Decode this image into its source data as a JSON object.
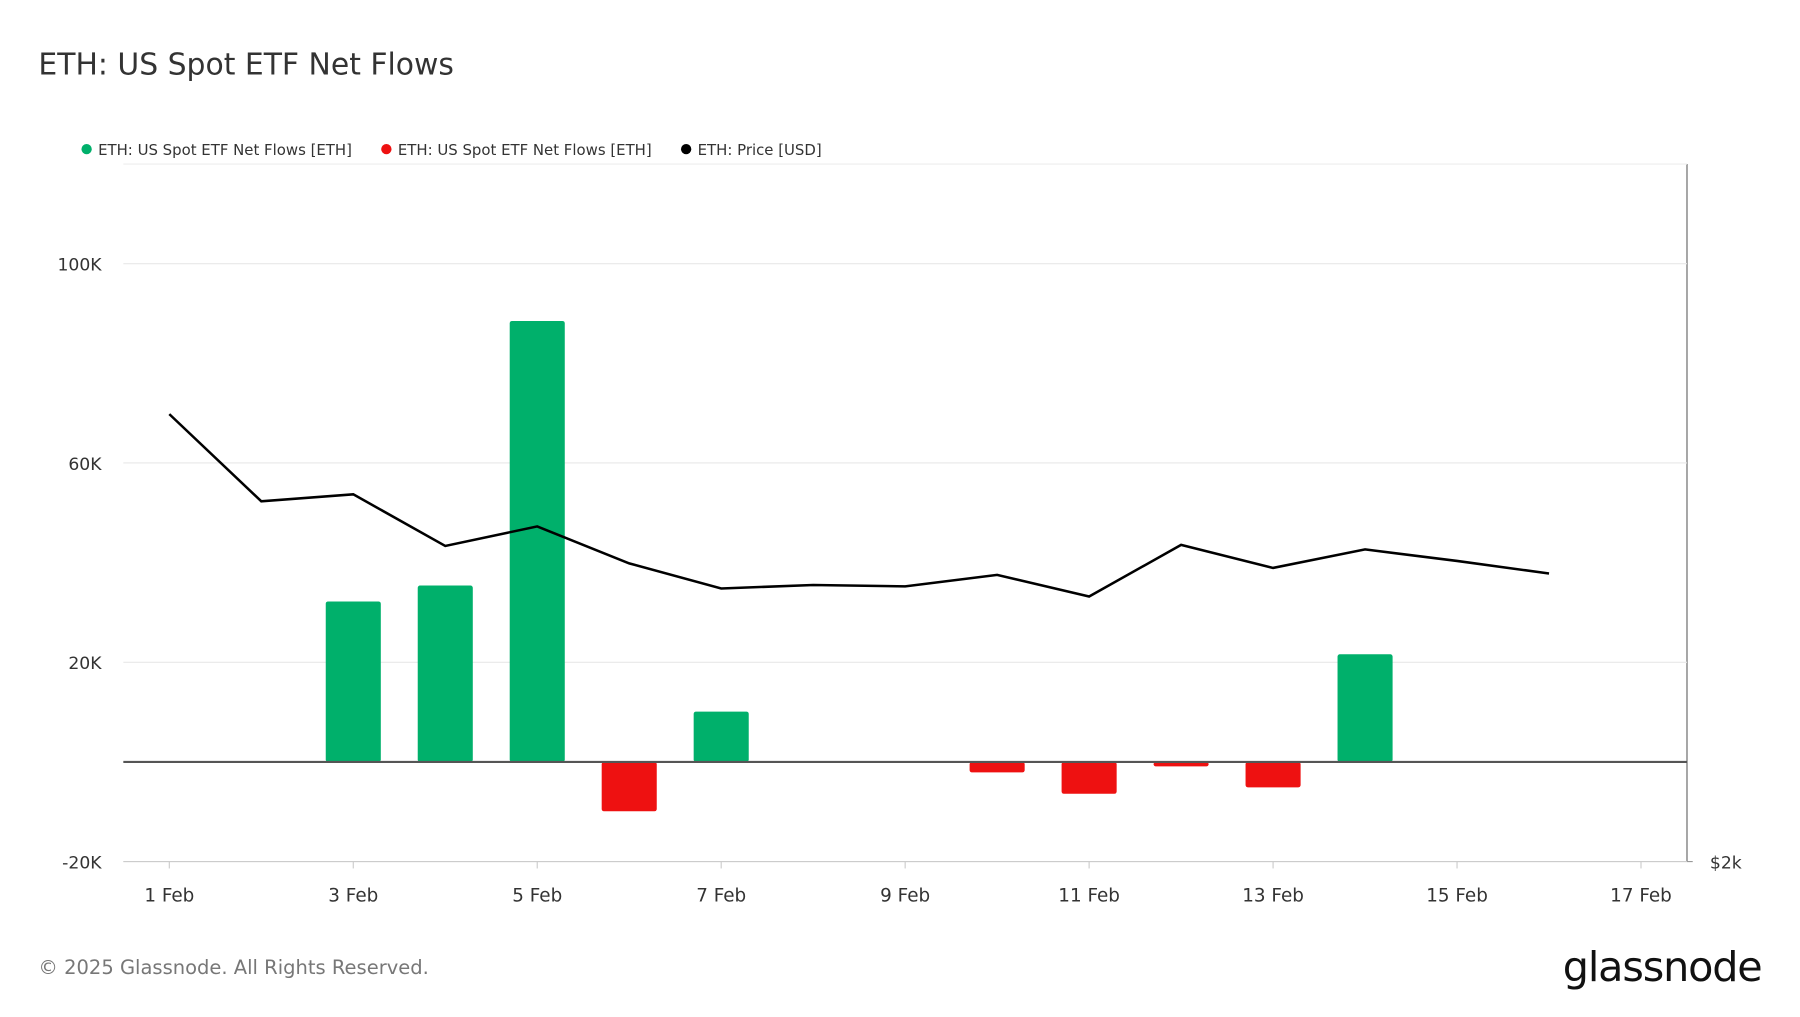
{
  "chart_data": {
    "type": "bar-line",
    "title": "ETH: US Spot ETF Net Flows",
    "footer": "© 2025 Glassnode. All Rights Reserved.",
    "brand": "glassnode",
    "x": [
      1,
      2,
      3,
      4,
      5,
      6,
      7,
      8,
      9,
      10,
      11,
      12,
      13,
      14,
      15,
      16
    ],
    "xlim": [
      0.5,
      17.5
    ],
    "xticks": [
      {
        "value": 1,
        "label": "1 Feb"
      },
      {
        "value": 3,
        "label": "3 Feb"
      },
      {
        "value": 5,
        "label": "5 Feb"
      },
      {
        "value": 7,
        "label": "7 Feb"
      },
      {
        "value": 9,
        "label": "9 Feb"
      },
      {
        "value": 11,
        "label": "11 Feb"
      },
      {
        "value": 13,
        "label": "13 Feb"
      },
      {
        "value": 15,
        "label": "15 Feb"
      },
      {
        "value": 17,
        "label": "17 Feb"
      }
    ],
    "ylim": [
      -20000,
      120000
    ],
    "yticks": [
      {
        "value": -20000,
        "label": "-20K"
      },
      {
        "value": 20000,
        "label": "20K"
      },
      {
        "value": 60000,
        "label": "60K"
      },
      {
        "value": 100000,
        "label": "100K"
      }
    ],
    "y2lim": [
      2000,
      4000
    ],
    "y2ticks": [
      {
        "value": 2000,
        "label": "$2k"
      }
    ],
    "grid": true,
    "legend": "top-left",
    "series": [
      {
        "name": "ETH: US Spot ETF Net Flows [ETH]",
        "color": "#00b06b",
        "kind": "bar",
        "values": [
          null,
          null,
          32200,
          35400,
          88500,
          null,
          10100,
          null,
          null,
          null,
          null,
          null,
          null,
          21600,
          null,
          null
        ]
      },
      {
        "name": "ETH: US Spot ETF Net Flows [ETH]",
        "color": "#ee1111",
        "kind": "bar",
        "values": [
          null,
          null,
          null,
          null,
          null,
          -9900,
          null,
          null,
          null,
          -2100,
          -6400,
          -900,
          -5100,
          null,
          null,
          null
        ]
      },
      {
        "name": "ETH: Price [USD]",
        "color": "#000000",
        "kind": "line",
        "axis": "y2",
        "values": [
          3283,
          3033,
          3053,
          2905,
          2961,
          2855,
          2783,
          2793,
          2789,
          2822,
          2760,
          2908,
          2842,
          2895,
          2862,
          2826
        ]
      }
    ]
  }
}
